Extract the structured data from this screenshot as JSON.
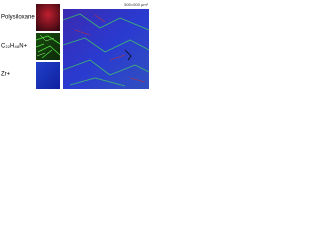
{
  "panels": [
    {
      "label": "Polysiloxane"
    },
    {
      "label": "C₂₂H₄₈N+"
    },
    {
      "label": "Zr+"
    }
  ],
  "overlay": {
    "scale": "500×500 µm²"
  }
}
